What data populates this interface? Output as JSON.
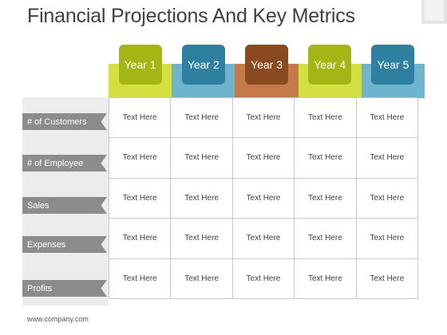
{
  "title": "Financial Projections And Key Metrics",
  "columns": [
    {
      "label": "Year 1",
      "tab_color": "#a3b615",
      "band_color": "#d4e042"
    },
    {
      "label": "Year 2",
      "tab_color": "#2f7fa0",
      "band_color": "#6fb4cf"
    },
    {
      "label": "Year 3",
      "tab_color": "#8a4a1f",
      "band_color": "#c47a4a"
    },
    {
      "label": "Year 4",
      "tab_color": "#a3b615",
      "band_color": "#d4e042"
    },
    {
      "label": "Year 5",
      "tab_color": "#2f7fa0",
      "band_color": "#6fb4cf"
    }
  ],
  "rows": [
    {
      "label": "# of Customers",
      "cells": [
        "Text Here",
        "Text Here",
        "Text Here",
        "Text Here",
        "Text Here"
      ]
    },
    {
      "label": "# of Employee",
      "cells": [
        "Text Here",
        "Text Here",
        "Text Here",
        "Text Here",
        "Text Here"
      ]
    },
    {
      "label": "Sales",
      "cells": [
        "Text Here",
        "Text Here",
        "Text Here",
        "Text Here",
        "Text Here"
      ]
    },
    {
      "label": "Expenses",
      "cells": [
        "Text Here",
        "Text Here",
        "Text Here",
        "Text Here",
        "Text Here"
      ]
    },
    {
      "label": "Profits",
      "cells": [
        "Text Here",
        "Text Here",
        "Text Here",
        "Text Here",
        "Text Here"
      ]
    }
  ],
  "footer": "www.company.com"
}
